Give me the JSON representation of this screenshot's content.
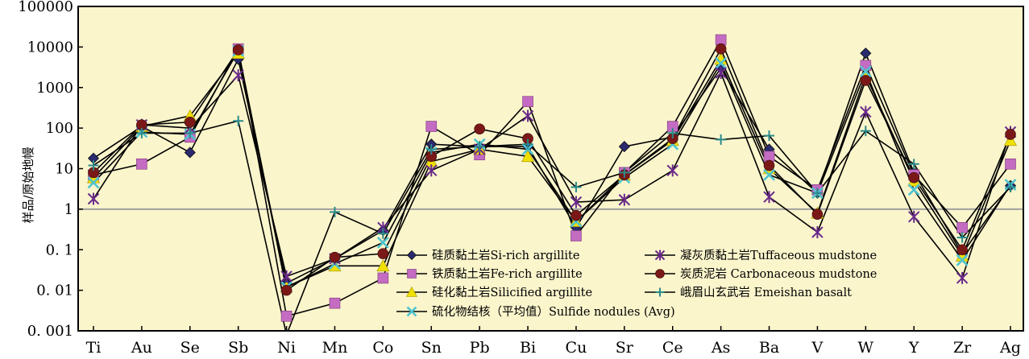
{
  "chart_data": {
    "type": "line",
    "y_scale": "log",
    "ylim": [
      0.001,
      100000
    ],
    "ylabel": "样品/原始地幔",
    "xlabel": "",
    "title": "",
    "reference_line_y": 1,
    "categories": [
      "Ti",
      "Au",
      "Se",
      "Sb",
      "Ni",
      "Mn",
      "Co",
      "Sn",
      "Pb",
      "Bi",
      "Cu",
      "Sr",
      "Ce",
      "As",
      "Ba",
      "V",
      "W",
      "Y",
      "Zr",
      "Ag"
    ],
    "y_tick_labels": [
      "0. 001",
      "0. 01",
      "0. 1",
      "1",
      "10",
      "100",
      "1000",
      "10000",
      "100000"
    ],
    "y_tick_values": [
      0.001,
      0.01,
      0.1,
      1,
      10,
      100,
      1000,
      10000,
      100000
    ],
    "grid": false,
    "legend_position": "bottom-center",
    "background": "#fbf5cc",
    "series": [
      {
        "name": "硅质黏土岩Si-rich argillite",
        "marker": "diamond",
        "color": "#2a2a6e",
        "values": [
          18,
          110,
          25,
          5000,
          0.015,
          0.06,
          0.3,
          40,
          35,
          35,
          0.35,
          35,
          60,
          3000,
          30,
          2.5,
          7000,
          8,
          0.08,
          3.8
        ]
      },
      {
        "name": "铁质黏土岩Fe-rich argillite",
        "marker": "square",
        "color": "#c46bc2",
        "values": [
          7,
          13,
          60,
          9000,
          0.0023,
          0.0048,
          0.02,
          110,
          22,
          450,
          0.22,
          8,
          110,
          15000,
          20,
          3,
          3500,
          7,
          0.35,
          13
        ]
      },
      {
        "name": "硅化黏土岩Silicified argillite",
        "marker": "triangle",
        "color": "#f0e000",
        "values": [
          6,
          110,
          200,
          7000,
          0.012,
          0.04,
          0.04,
          15,
          30,
          20,
          0.5,
          7,
          50,
          5000,
          10,
          0.8,
          2000,
          5,
          0.07,
          50
        ]
      },
      {
        "name": "硫化物结核（平均值）Sulfide nodules (Avg)",
        "marker": "x",
        "color": "#4fc4d0",
        "values": [
          4.5,
          80,
          70,
          8000,
          0.012,
          0.045,
          0.15,
          25,
          40,
          30,
          0.5,
          6,
          40,
          4000,
          7,
          2.5,
          2500,
          3,
          0.055,
          4
        ]
      },
      {
        "name": "凝灰质黏土岩Tuffaceous mudstone",
        "marker": "star",
        "color": "#6a2a8a",
        "values": [
          1.8,
          120,
          100,
          2000,
          0.022,
          0.06,
          0.35,
          9,
          30,
          200,
          1.5,
          1.7,
          9,
          2300,
          2,
          0.27,
          250,
          0.65,
          0.02,
          80
        ]
      },
      {
        "name": "炭质泥岩 Carbonaceous mudstone",
        "marker": "circle",
        "color": "#7a1818",
        "values": [
          8,
          120,
          140,
          8500,
          0.01,
          0.065,
          0.08,
          20,
          95,
          55,
          0.7,
          7,
          55,
          9000,
          12,
          0.75,
          1500,
          6,
          0.1,
          70
        ]
      },
      {
        "name": "峨眉山玄武岩 Emeishan basalt",
        "marker": "plus",
        "color": "#2a8a8a",
        "values": [
          12,
          75,
          75,
          150,
          0.0008,
          0.85,
          0.25,
          30,
          35,
          40,
          3.5,
          8,
          75,
          52,
          65,
          2.5,
          85,
          13,
          0.2,
          3.5
        ]
      }
    ]
  }
}
